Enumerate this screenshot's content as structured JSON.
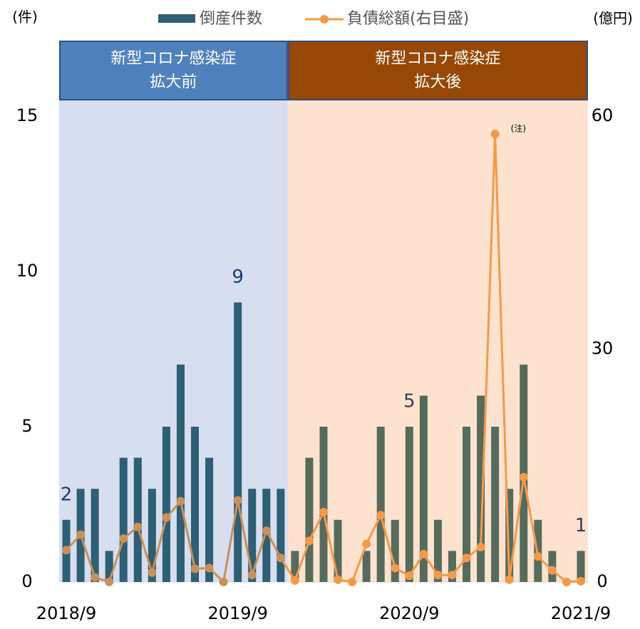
{
  "chart_data": {
    "type": "bar_line",
    "y_label": "(件)",
    "y2_label": "(億円)",
    "categories": [
      "2018/9",
      null,
      null,
      null,
      null,
      null,
      null,
      null,
      null,
      null,
      null,
      null,
      "2019/9",
      null,
      null,
      null,
      null,
      null,
      null,
      null,
      null,
      null,
      null,
      null,
      "2020/9",
      null,
      null,
      null,
      null,
      null,
      null,
      null,
      null,
      null,
      null,
      null,
      "2021/9"
    ],
    "periods": [
      {
        "lines": [
          "新型コロナ感染症",
          "拡大前"
        ],
        "span": 16,
        "header_color": "#4f81bd",
        "fill": "#d6deef",
        "bar_color": "#2e5f74",
        "line_color": "#c8915a",
        "label_color": "#1f3b6e"
      },
      {
        "lines": [
          "新型コロナ感染症",
          "拡大後"
        ],
        "span": 21,
        "header_color": "#974706",
        "fill": "#fde3cf",
        "bar_color": "#566b5c",
        "line_color": "#f39a4a",
        "label_color": "#3b3b5a"
      }
    ],
    "series": [
      {
        "name": "倒産件数",
        "color": "#2e5f74",
        "values": [
          2,
          3,
          3,
          1,
          4,
          4,
          3,
          5,
          7,
          5,
          4,
          0,
          9,
          3,
          3,
          3,
          1,
          4,
          5,
          2,
          0,
          1,
          5,
          2,
          5,
          6,
          2,
          1,
          5,
          6,
          5,
          3,
          7,
          2,
          1,
          0,
          1
        ],
        "value_labels": [
          "2",
          null,
          null,
          null,
          null,
          null,
          null,
          null,
          null,
          null,
          null,
          null,
          "9",
          null,
          null,
          null,
          null,
          null,
          null,
          null,
          null,
          null,
          null,
          null,
          "5",
          null,
          null,
          null,
          null,
          null,
          null,
          null,
          null,
          null,
          null,
          null,
          "1"
        ]
      },
      {
        "name": "負債総額(右目盛)",
        "color": "#f39a4a",
        "axis": "y2",
        "values": [
          4.1,
          6.1,
          0.6,
          0,
          5.6,
          7.1,
          1.2,
          8.3,
          10.4,
          1.7,
          1.8,
          0,
          10.5,
          0.9,
          6.6,
          3.1,
          0.2,
          5.3,
          9.0,
          0.3,
          0,
          4.9,
          8.6,
          1.8,
          0.8,
          3.6,
          0.9,
          0.9,
          3.1,
          4.5,
          57.7,
          0.3,
          13.5,
          3.3,
          1.5,
          0,
          0.1
        ],
        "point_notes": [
          null,
          null,
          null,
          null,
          null,
          null,
          null,
          null,
          null,
          null,
          null,
          null,
          null,
          null,
          null,
          null,
          null,
          null,
          null,
          null,
          null,
          null,
          null,
          null,
          null,
          null,
          null,
          null,
          null,
          null,
          "(注)",
          null,
          null,
          null,
          null,
          null,
          null
        ]
      }
    ],
    "ylim": [
      0,
      15
    ],
    "yticks": [
      0,
      5,
      10,
      15
    ],
    "y2lim": [
      0,
      60
    ],
    "y2ticks": [
      0,
      30,
      60
    ]
  }
}
